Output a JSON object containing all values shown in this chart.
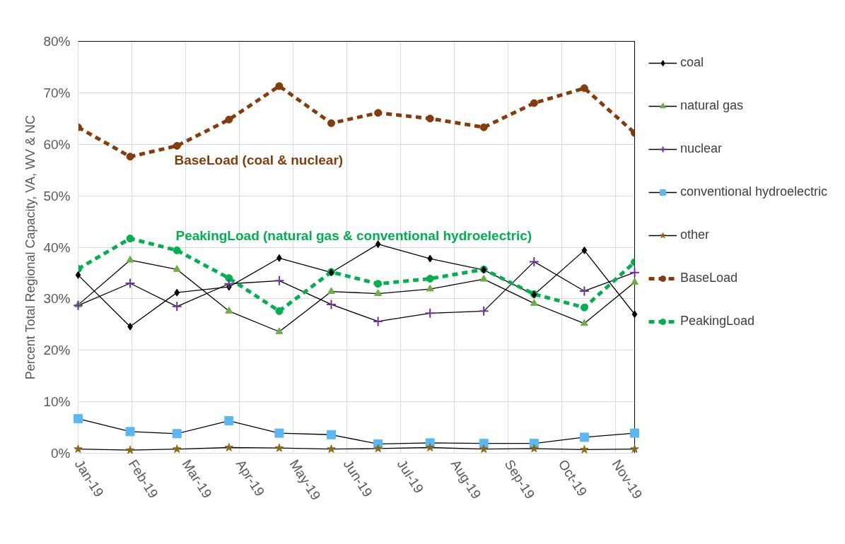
{
  "chart_data": {
    "type": "line",
    "ylabel": "Percent Total Regional Capacity, VA, WV & NC",
    "x": [
      "2019-01-01",
      "2019-01-31",
      "2019-02-27",
      "2019-03-29",
      "2019-04-27",
      "2019-05-27",
      "2019-06-23",
      "2019-07-23",
      "2019-08-23",
      "2019-09-21",
      "2019-10-20",
      "2019-11-18"
    ],
    "xlim": [
      "2019-01-01",
      "2019-11-18"
    ],
    "xticks": [
      {
        "value": "2019-01-01",
        "label": "Jan-19"
      },
      {
        "value": "2019-02-01",
        "label": "Feb-19"
      },
      {
        "value": "2019-03-04",
        "label": "Mar-19"
      },
      {
        "value": "2019-04-04",
        "label": "Apr-19"
      },
      {
        "value": "2019-05-05",
        "label": "May-19"
      },
      {
        "value": "2019-06-05",
        "label": "Jun-19"
      },
      {
        "value": "2019-07-06",
        "label": "Jul-19"
      },
      {
        "value": "2019-08-06",
        "label": "Aug-19"
      },
      {
        "value": "2019-09-06",
        "label": "Sep-19"
      },
      {
        "value": "2019-10-07",
        "label": "Oct-19"
      },
      {
        "value": "2019-11-07",
        "label": "Nov-19"
      }
    ],
    "ylim": [
      0,
      80
    ],
    "yticks": [
      {
        "value": 0,
        "label": "0%"
      },
      {
        "value": 10,
        "label": "10%"
      },
      {
        "value": 20,
        "label": "20%"
      },
      {
        "value": 30,
        "label": "30%"
      },
      {
        "value": 40,
        "label": "40%"
      },
      {
        "value": 50,
        "label": "50%"
      },
      {
        "value": 60,
        "label": "60%"
      },
      {
        "value": 70,
        "label": "70%"
      },
      {
        "value": 80,
        "label": "80%"
      }
    ],
    "grid": true,
    "legend": "right",
    "series": [
      {
        "name": "coal",
        "color": "#000000",
        "marker": "diamond",
        "line_style": "solid",
        "values": [
          34.6,
          24.6,
          31.2,
          32.3,
          37.9,
          35.1,
          40.6,
          37.8,
          35.6,
          30.8,
          39.4,
          27.0
        ]
      },
      {
        "name": "natural gas",
        "color": "#70ad47",
        "marker": "triangle",
        "line_style": "solid",
        "values": [
          28.8,
          37.5,
          35.7,
          27.6,
          23.6,
          31.4,
          31.0,
          31.9,
          33.8,
          29.1,
          25.2,
          33.2
        ]
      },
      {
        "name": "nuclear",
        "color": "#7030a0",
        "marker": "cross",
        "line_style": "solid",
        "values": [
          28.7,
          33.0,
          28.5,
          32.9,
          33.5,
          28.9,
          25.6,
          27.2,
          27.6,
          37.2,
          31.5,
          35.1
        ]
      },
      {
        "name": "conventional hydroelectric",
        "color": "#5bb8f5",
        "marker": "square",
        "line_style": "solid",
        "values": [
          6.7,
          4.2,
          3.8,
          6.3,
          3.9,
          3.6,
          1.8,
          2.0,
          1.9,
          1.9,
          3.1,
          3.9
        ]
      },
      {
        "name": "other",
        "color": "#8b6914",
        "marker": "star",
        "line_style": "solid",
        "values": [
          0.8,
          0.6,
          0.8,
          1.1,
          1.0,
          0.8,
          0.9,
          1.1,
          0.8,
          0.9,
          0.7,
          0.8
        ]
      },
      {
        "name": "BaseLoad",
        "color": "#843c0c",
        "marker": "circle",
        "line_style": "dashed",
        "values": [
          63.3,
          57.6,
          59.7,
          64.8,
          71.3,
          64.1,
          66.1,
          65.0,
          63.3,
          68.0,
          70.9,
          62.2
        ]
      },
      {
        "name": "PeakingLoad",
        "color": "#00b050",
        "marker": "circle",
        "line_style": "dashed",
        "values": [
          35.8,
          41.7,
          39.4,
          34.0,
          27.6,
          35.2,
          32.9,
          33.9,
          35.7,
          30.9,
          28.3,
          37.1
        ]
      }
    ],
    "annotations": [
      "BaseLoad (coal & nuclear)",
      "PeakingLoad (natural gas & conventional hydroelectric)"
    ]
  }
}
